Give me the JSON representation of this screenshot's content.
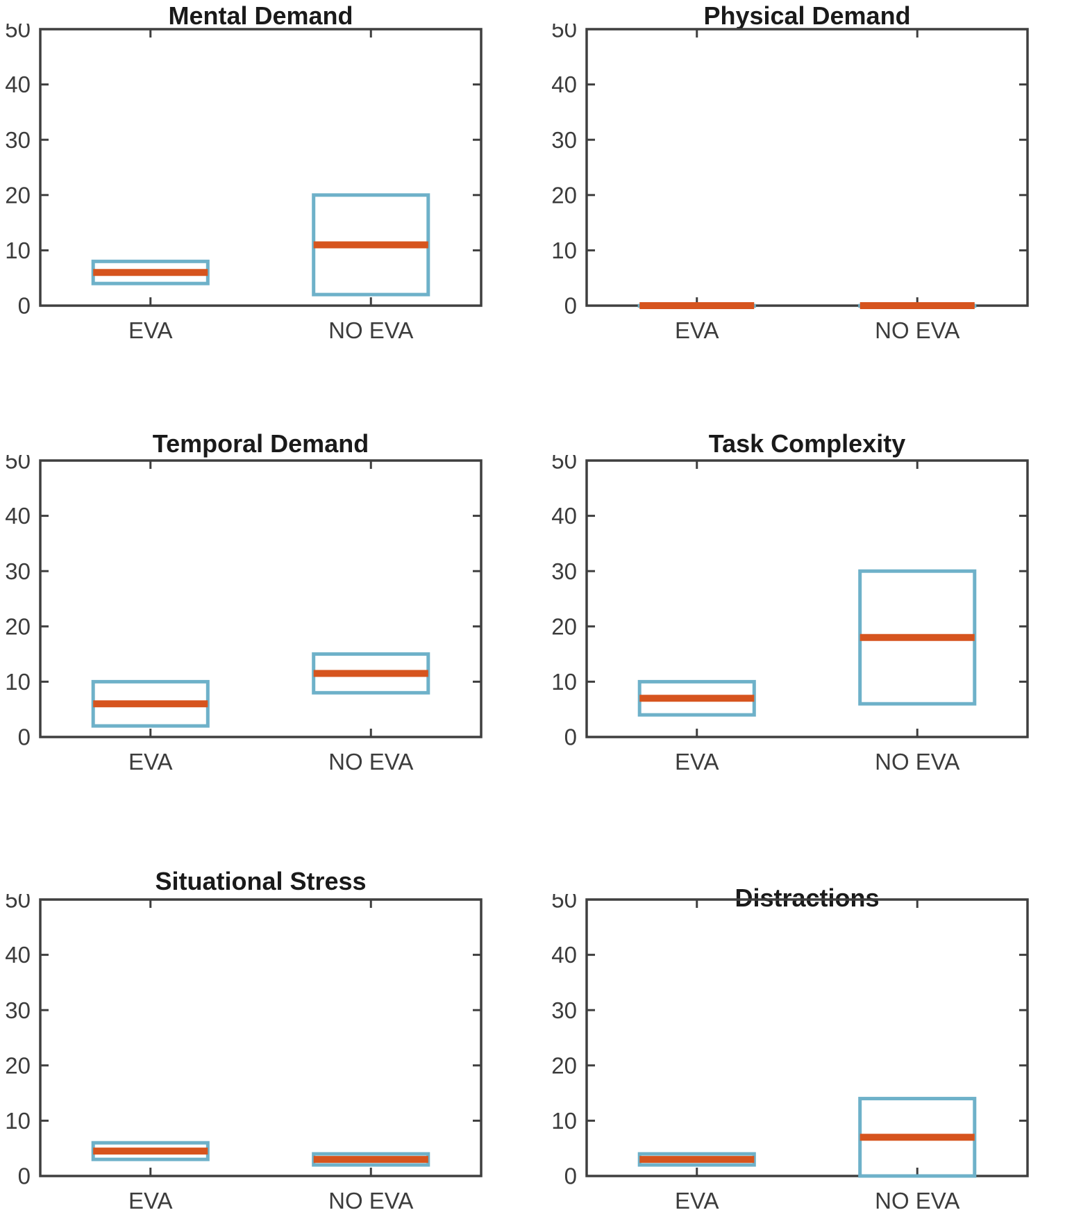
{
  "figure": {
    "type": "boxplot-grid",
    "rows": 3,
    "cols": 2,
    "background": "#ffffff",
    "box_color": "#6EB1C9",
    "median_color": "#D6541E",
    "axis_color": "#3F3F3F",
    "tick_label_color": "#3C3C3C",
    "title_color": "#1A1A1A",
    "whiskers": "none",
    "grid": "off",
    "legend": "none"
  },
  "chart_data": [
    {
      "type": "box",
      "title": "Mental Demand",
      "categories": [
        "EVA",
        "NO EVA"
      ],
      "ylim": [
        0,
        50
      ],
      "yticks": [
        0,
        10,
        20,
        30,
        40,
        50
      ],
      "boxes": [
        {
          "category": "EVA",
          "q1": 4,
          "median": 6,
          "q3": 8
        },
        {
          "category": "NO EVA",
          "q1": 2,
          "median": 11,
          "q3": 20
        }
      ]
    },
    {
      "type": "box",
      "title": "Physical Demand",
      "categories": [
        "EVA",
        "NO EVA"
      ],
      "ylim": [
        0,
        50
      ],
      "yticks": [
        0,
        10,
        20,
        30,
        40,
        50
      ],
      "boxes": [
        {
          "category": "EVA",
          "q1": 0,
          "median": 0,
          "q3": 0
        },
        {
          "category": "NO EVA",
          "q1": 0,
          "median": 0,
          "q3": 0
        }
      ]
    },
    {
      "type": "box",
      "title": "Temporal Demand",
      "categories": [
        "EVA",
        "NO EVA"
      ],
      "ylim": [
        0,
        50
      ],
      "yticks": [
        0,
        10,
        20,
        30,
        40,
        50
      ],
      "boxes": [
        {
          "category": "EVA",
          "q1": 2,
          "median": 6,
          "q3": 10
        },
        {
          "category": "NO EVA",
          "q1": 8,
          "median": 11.5,
          "q3": 15
        }
      ]
    },
    {
      "type": "box",
      "title": "Task Complexity",
      "categories": [
        "EVA",
        "NO EVA"
      ],
      "ylim": [
        0,
        50
      ],
      "yticks": [
        0,
        10,
        20,
        30,
        40,
        50
      ],
      "boxes": [
        {
          "category": "EVA",
          "q1": 4,
          "median": 7,
          "q3": 10
        },
        {
          "category": "NO EVA",
          "q1": 6,
          "median": 18,
          "q3": 30
        }
      ]
    },
    {
      "type": "box",
      "title": "Situational Stress",
      "categories": [
        "EVA",
        "NO EVA"
      ],
      "ylim": [
        0,
        50
      ],
      "yticks": [
        0,
        10,
        20,
        30,
        40,
        50
      ],
      "boxes": [
        {
          "category": "EVA",
          "q1": 3,
          "median": 4.5,
          "q3": 6
        },
        {
          "category": "NO EVA",
          "q1": 2,
          "median": 3,
          "q3": 4
        }
      ]
    },
    {
      "type": "box",
      "title": "Distractions",
      "categories": [
        "EVA",
        "NO EVA"
      ],
      "ylim": [
        0,
        50
      ],
      "yticks": [
        0,
        10,
        20,
        30,
        40,
        50
      ],
      "boxes": [
        {
          "category": "EVA",
          "q1": 2,
          "median": 3,
          "q3": 4
        },
        {
          "category": "NO EVA",
          "q1": 0,
          "median": 7,
          "q3": 14
        }
      ]
    }
  ]
}
